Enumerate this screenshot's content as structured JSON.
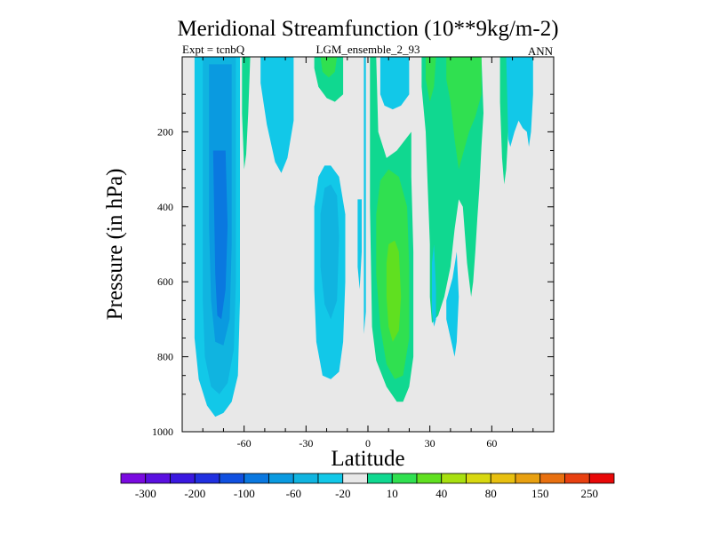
{
  "chart_data": {
    "type": "heatmap",
    "title": "Meridional Streamfunction (10**9kg/m-2)",
    "subtitle_left": "Expt = tcnbQ",
    "subtitle_center": "LGM_ensemble_2_93",
    "subtitle_right": "ANN",
    "xlabel": "Latitude",
    "ylabel": "Pressure (in hPa)",
    "xlim": [
      -90,
      90
    ],
    "ylim": [
      1000,
      0
    ],
    "x_ticks": [
      {
        "value": -60,
        "label": "-60"
      },
      {
        "value": -30,
        "label": "-30"
      },
      {
        "value": 0,
        "label": "0"
      },
      {
        "value": 30,
        "label": "30"
      },
      {
        "value": 60,
        "label": "60"
      }
    ],
    "y_ticks": [
      {
        "value": 200,
        "label": "200"
      },
      {
        "value": 400,
        "label": "400"
      },
      {
        "value": 600,
        "label": "600"
      },
      {
        "value": 800,
        "label": "800"
      },
      {
        "value": 1000,
        "label": "1000"
      }
    ],
    "colorbar": {
      "labels": [
        "-300",
        "-200",
        "-100",
        "-60",
        "-20",
        "10",
        "40",
        "80",
        "150",
        "250"
      ],
      "colors": [
        "#7a0ae0",
        "#5a10e0",
        "#3a18e0",
        "#2030e0",
        "#1050e0",
        "#0a78e0",
        "#0a9ae0",
        "#10b4e0",
        "#12c8e8",
        "#e8e8e8",
        "#10d890",
        "#30e050",
        "#60e020",
        "#a8e010",
        "#d8d810",
        "#e8c010",
        "#e8a010",
        "#e87010",
        "#e84010",
        "#e80808"
      ]
    },
    "fill_colors": {
      "background": "#e8e8e8",
      "neg_20": "#12c8e8",
      "neg_60": "#10b4e0",
      "neg_100": "#0a9ae0",
      "neg_200": "#0a78e0",
      "pos_10": "#10d890",
      "pos_40": "#30e050",
      "pos_80": "#60e020"
    },
    "contours": [
      {
        "level": "neg_20",
        "points": [
          [
            -84,
            0
          ],
          [
            -62,
            0
          ],
          [
            -62,
            650
          ],
          [
            -63,
            850
          ],
          [
            -66,
            920
          ],
          [
            -70,
            950
          ],
          [
            -74,
            960
          ],
          [
            -78,
            930
          ],
          [
            -82,
            860
          ],
          [
            -84,
            750
          ]
        ]
      },
      {
        "level": "neg_60",
        "points": [
          [
            -80,
            0
          ],
          [
            -64,
            0
          ],
          [
            -64,
            600
          ],
          [
            -65,
            780
          ],
          [
            -68,
            870
          ],
          [
            -72,
            900
          ],
          [
            -76,
            880
          ],
          [
            -79,
            800
          ],
          [
            -80,
            650
          ]
        ]
      },
      {
        "level": "neg_100",
        "points": [
          [
            -77,
            20
          ],
          [
            -66,
            20
          ],
          [
            -66,
            500
          ],
          [
            -67,
            700
          ],
          [
            -70,
            770
          ],
          [
            -74,
            760
          ],
          [
            -76,
            650
          ],
          [
            -77,
            450
          ]
        ]
      },
      {
        "level": "neg_200",
        "points": [
          [
            -75,
            250
          ],
          [
            -69,
            250
          ],
          [
            -68,
            450
          ],
          [
            -69,
            620
          ],
          [
            -71,
            700
          ],
          [
            -73,
            690
          ],
          [
            -74,
            580
          ]
        ]
      },
      {
        "level": "pos_10",
        "points": [
          [
            -61,
            0
          ],
          [
            -57,
            0
          ],
          [
            -58,
            150
          ],
          [
            -59,
            260
          ],
          [
            -60,
            300
          ],
          [
            -61,
            150
          ]
        ]
      },
      {
        "level": "neg_20",
        "points": [
          [
            -52,
            0
          ],
          [
            -36,
            0
          ],
          [
            -36,
            170
          ],
          [
            -39,
            270
          ],
          [
            -42,
            310
          ],
          [
            -45,
            280
          ],
          [
            -49,
            180
          ],
          [
            -52,
            70
          ]
        ]
      },
      {
        "level": "pos_10",
        "points": [
          [
            -26,
            0
          ],
          [
            -12,
            0
          ],
          [
            -12,
            100
          ],
          [
            -16,
            120
          ],
          [
            -20,
            110
          ],
          [
            -24,
            80
          ],
          [
            -26,
            30
          ]
        ]
      },
      {
        "level": "pos_40",
        "points": [
          [
            -23,
            0
          ],
          [
            -15,
            0
          ],
          [
            -16,
            40
          ],
          [
            -19,
            55
          ],
          [
            -22,
            40
          ]
        ]
      },
      {
        "level": "neg_20",
        "points": [
          [
            -26,
            400
          ],
          [
            -24,
            320
          ],
          [
            -21,
            290
          ],
          [
            -18,
            290
          ],
          [
            -14,
            320
          ],
          [
            -11,
            420
          ],
          [
            -11,
            600
          ],
          [
            -12,
            760
          ],
          [
            -14,
            840
          ],
          [
            -18,
            860
          ],
          [
            -22,
            850
          ],
          [
            -25,
            760
          ],
          [
            -26,
            620
          ]
        ]
      },
      {
        "level": "neg_60",
        "points": [
          [
            -23,
            420
          ],
          [
            -21,
            350
          ],
          [
            -18,
            340
          ],
          [
            -15,
            370
          ],
          [
            -14,
            480
          ],
          [
            -15,
            650
          ],
          [
            -18,
            700
          ],
          [
            -21,
            660
          ],
          [
            -23,
            560
          ]
        ]
      },
      {
        "level": "neg_20",
        "points": [
          [
            -5,
            380
          ],
          [
            -3,
            380
          ],
          [
            -3,
            520
          ],
          [
            -4,
            620
          ],
          [
            -5,
            560
          ]
        ]
      },
      {
        "level": "neg_20",
        "points": [
          [
            -2,
            0
          ],
          [
            -1,
            0
          ],
          [
            -1,
            680
          ],
          [
            -2,
            740
          ],
          [
            -2,
            400
          ]
        ]
      },
      {
        "level": "pos_10",
        "points": [
          [
            1,
            0
          ],
          [
            4,
            0
          ],
          [
            5,
            200
          ],
          [
            9,
            270
          ],
          [
            14,
            250
          ],
          [
            21,
            200
          ],
          [
            21,
            320
          ],
          [
            22,
            520
          ],
          [
            22,
            800
          ],
          [
            20,
            880
          ],
          [
            17,
            920
          ],
          [
            14,
            920
          ],
          [
            9,
            880
          ],
          [
            4,
            810
          ],
          [
            2,
            720
          ],
          [
            1,
            400
          ]
        ]
      },
      {
        "level": "pos_40",
        "points": [
          [
            4,
            420
          ],
          [
            6,
            330
          ],
          [
            10,
            300
          ],
          [
            15,
            320
          ],
          [
            19,
            400
          ],
          [
            20,
            560
          ],
          [
            20,
            750
          ],
          [
            17,
            850
          ],
          [
            13,
            860
          ],
          [
            9,
            820
          ],
          [
            6,
            720
          ],
          [
            4,
            580
          ]
        ]
      },
      {
        "level": "pos_80",
        "points": [
          [
            9,
            550
          ],
          [
            10,
            500
          ],
          [
            13,
            490
          ],
          [
            15,
            520
          ],
          [
            16,
            640
          ],
          [
            15,
            730
          ],
          [
            12,
            760
          ],
          [
            10,
            720
          ],
          [
            9,
            640
          ]
        ]
      },
      {
        "level": "neg_20",
        "points": [
          [
            6,
            0
          ],
          [
            20,
            0
          ],
          [
            20,
            100
          ],
          [
            16,
            130
          ],
          [
            12,
            140
          ],
          [
            8,
            130
          ],
          [
            6,
            100
          ]
        ]
      },
      {
        "level": "pos_10",
        "points": [
          [
            26,
            0
          ],
          [
            55,
            0
          ],
          [
            56,
            150
          ],
          [
            55,
            240
          ],
          [
            54,
            350
          ],
          [
            53,
            430
          ],
          [
            52,
            520
          ],
          [
            51,
            600
          ],
          [
            50,
            640
          ],
          [
            48,
            550
          ],
          [
            46,
            400
          ],
          [
            44,
            380
          ],
          [
            42,
            460
          ],
          [
            40,
            560
          ],
          [
            37,
            640
          ],
          [
            34,
            690
          ],
          [
            31,
            710
          ],
          [
            30,
            640
          ],
          [
            30,
            500
          ],
          [
            29,
            350
          ],
          [
            28,
            200
          ],
          [
            26,
            80
          ]
        ]
      },
      {
        "level": "pos_40",
        "points": [
          [
            28,
            0
          ],
          [
            33,
            0
          ],
          [
            32,
            80
          ],
          [
            30,
            120
          ],
          [
            28,
            60
          ]
        ]
      },
      {
        "level": "pos_40",
        "points": [
          [
            38,
            0
          ],
          [
            55,
            0
          ],
          [
            55,
            100
          ],
          [
            52,
            160
          ],
          [
            49,
            200
          ],
          [
            46,
            260
          ],
          [
            44,
            300
          ],
          [
            42,
            220
          ],
          [
            40,
            120
          ],
          [
            38,
            60
          ]
        ]
      },
      {
        "level": "neg_20",
        "points": [
          [
            31,
            550
          ],
          [
            32,
            500
          ],
          [
            33,
            620
          ],
          [
            33,
            700
          ],
          [
            32,
            720
          ],
          [
            31,
            680
          ]
        ]
      },
      {
        "level": "neg_20",
        "points": [
          [
            38,
            650
          ],
          [
            41,
            590
          ],
          [
            43,
            520
          ],
          [
            44,
            640
          ],
          [
            43,
            760
          ],
          [
            42,
            800
          ],
          [
            40,
            750
          ],
          [
            38,
            700
          ]
        ]
      },
      {
        "level": "pos_10",
        "points": [
          [
            64,
            0
          ],
          [
            68,
            0
          ],
          [
            68,
            200
          ],
          [
            67,
            300
          ],
          [
            66,
            340
          ],
          [
            65,
            270
          ],
          [
            64,
            120
          ]
        ]
      },
      {
        "level": "neg_20",
        "points": [
          [
            67,
            0
          ],
          [
            80,
            0
          ],
          [
            80,
            100
          ],
          [
            79,
            200
          ],
          [
            78,
            240
          ],
          [
            77,
            200
          ],
          [
            75,
            190
          ],
          [
            73,
            170
          ],
          [
            71,
            200
          ],
          [
            69,
            240
          ],
          [
            68,
            220
          ]
        ]
      }
    ]
  }
}
